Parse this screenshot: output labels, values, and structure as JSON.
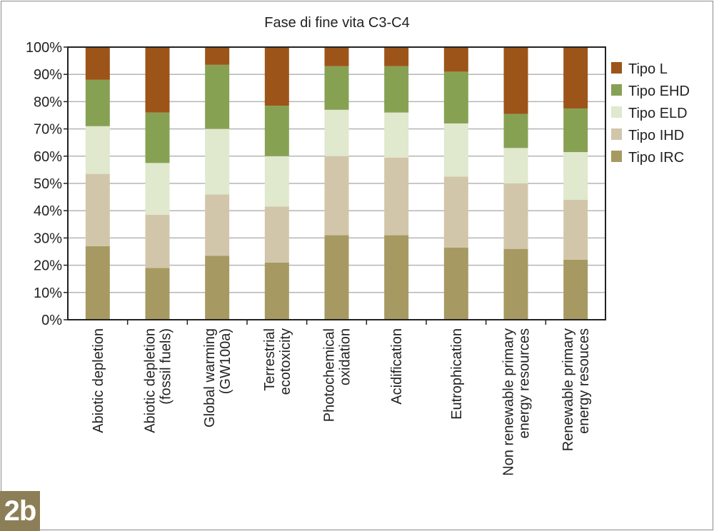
{
  "badge": "2b",
  "chart_data": {
    "type": "bar",
    "stacked": true,
    "title": "Fase di fine vita C3-C4",
    "xlabel": "",
    "ylabel": "",
    "ylim": [
      0,
      100
    ],
    "yticks": [
      "0%",
      "10%",
      "20%",
      "30%",
      "40%",
      "50%",
      "60%",
      "70%",
      "80%",
      "90%",
      "100%"
    ],
    "grid": true,
    "legend_position": "right",
    "categories": [
      [
        "Abiotic depletion"
      ],
      [
        "Abiotic depletion",
        "(fossil fuels)"
      ],
      [
        "Global warming",
        "(GW100a)"
      ],
      [
        "Terrestrial",
        "ecotoxicity"
      ],
      [
        "Photochemical",
        "oxidation"
      ],
      [
        "Acidification"
      ],
      [
        "Eutrophication"
      ],
      [
        "Non renewable primary",
        "energy resources"
      ],
      [
        "Renewable primary",
        "energy resouces"
      ]
    ],
    "series": [
      {
        "name": "Tipo IRC",
        "color": "#a69a62",
        "values": [
          27,
          19,
          23.5,
          21,
          31,
          31,
          26.5,
          26,
          22
        ]
      },
      {
        "name": "Tipo IHD",
        "color": "#d2c6aa",
        "values": [
          26.5,
          19.5,
          22.5,
          20.5,
          29,
          28.5,
          26,
          24,
          22
        ]
      },
      {
        "name": "Tipo ELD",
        "color": "#e0e8cd",
        "values": [
          17.5,
          19,
          24,
          18.5,
          17,
          16.5,
          19.5,
          13,
          17.5
        ]
      },
      {
        "name": "Tipo EHD",
        "color": "#87a153",
        "values": [
          17,
          18.5,
          23.5,
          18.5,
          16,
          17,
          19,
          12.5,
          16
        ]
      },
      {
        "name": "Tipo L",
        "color": "#9c5418",
        "values": [
          12,
          24,
          6.5,
          21.5,
          7,
          7,
          9,
          24.5,
          22.5
        ]
      }
    ]
  }
}
